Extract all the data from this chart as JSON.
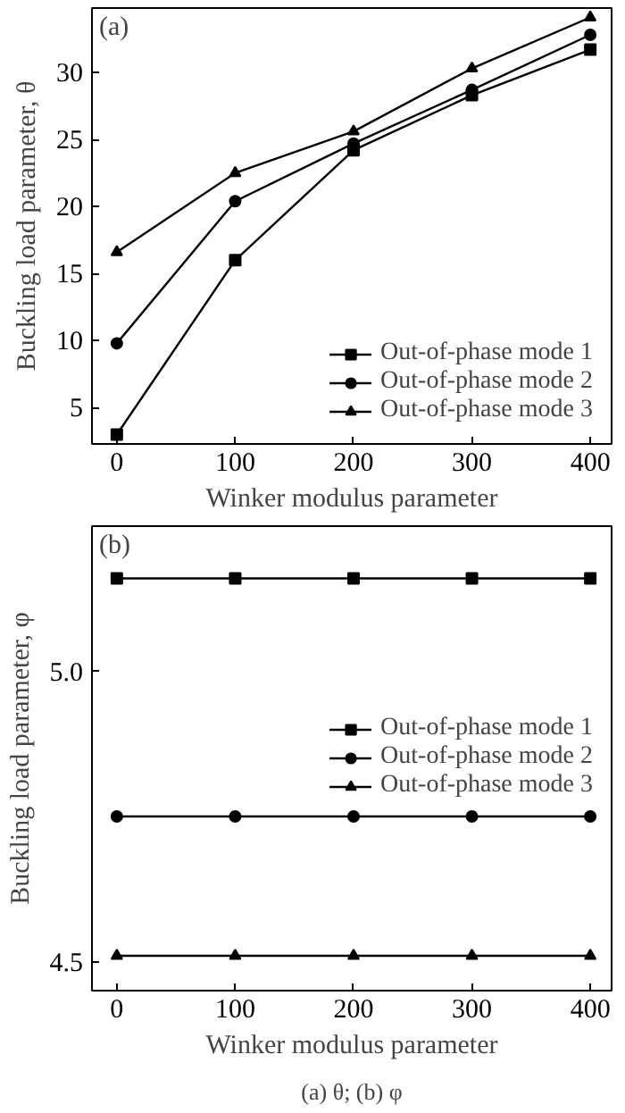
{
  "chart_data": [
    {
      "type": "line",
      "title": "(a)",
      "xlabel": "Winker modulus parameter",
      "ylabel": "Buckling load parameter, θ",
      "x": [
        0,
        100,
        200,
        300,
        400
      ],
      "xlim": [
        -21,
        418
      ],
      "xticks": [
        0,
        100,
        200,
        300,
        400
      ],
      "ylim": [
        2.3,
        34.8
      ],
      "yticks": [
        5,
        10,
        15,
        20,
        25,
        30
      ],
      "grid": false,
      "legend": "bottom right",
      "line_style": "solid",
      "series": [
        {
          "name": "Out-of-phase mode 1",
          "color": "#000000",
          "marker": "square",
          "values": [
            3.0,
            16.0,
            24.2,
            28.3,
            31.7
          ]
        },
        {
          "name": "Out-of-phase mode 2",
          "color": "#000000",
          "marker": "circle",
          "values": [
            9.8,
            20.4,
            24.7,
            28.7,
            32.8
          ]
        },
        {
          "name": "Out-of-phase mode 3",
          "color": "#000000",
          "marker": "triangle",
          "values": [
            16.6,
            22.5,
            25.6,
            30.3,
            34.1
          ]
        }
      ]
    },
    {
      "type": "line",
      "title": "(b)",
      "xlabel": "Winker modulus parameter",
      "ylabel": "Buckling load parameter, φ",
      "x": [
        0,
        100,
        200,
        300,
        400
      ],
      "xlim": [
        -21,
        418
      ],
      "xticks": [
        0,
        100,
        200,
        300,
        400
      ],
      "ylim": [
        4.45,
        5.25
      ],
      "yticks": [
        {
          "value": 4.5,
          "label": "4.5"
        },
        {
          "value": 5.0,
          "label": "5.0"
        }
      ],
      "grid": false,
      "legend": "right",
      "line_style": "solid",
      "annotations": [
        "(a) θ; (b) φ"
      ],
      "series": [
        {
          "name": "Out-of-phase mode 1",
          "color": "#000000",
          "marker": "square",
          "values": [
            5.16,
            5.16,
            5.16,
            5.16,
            5.16
          ]
        },
        {
          "name": "Out-of-phase mode 2",
          "color": "#000000",
          "marker": "circle",
          "values": [
            4.75,
            4.75,
            4.75,
            4.75,
            4.75
          ]
        },
        {
          "name": "Out-of-phase mode 3",
          "color": "#000000",
          "marker": "triangle",
          "values": [
            4.51,
            4.51,
            4.51,
            4.51,
            4.51
          ]
        }
      ]
    }
  ]
}
